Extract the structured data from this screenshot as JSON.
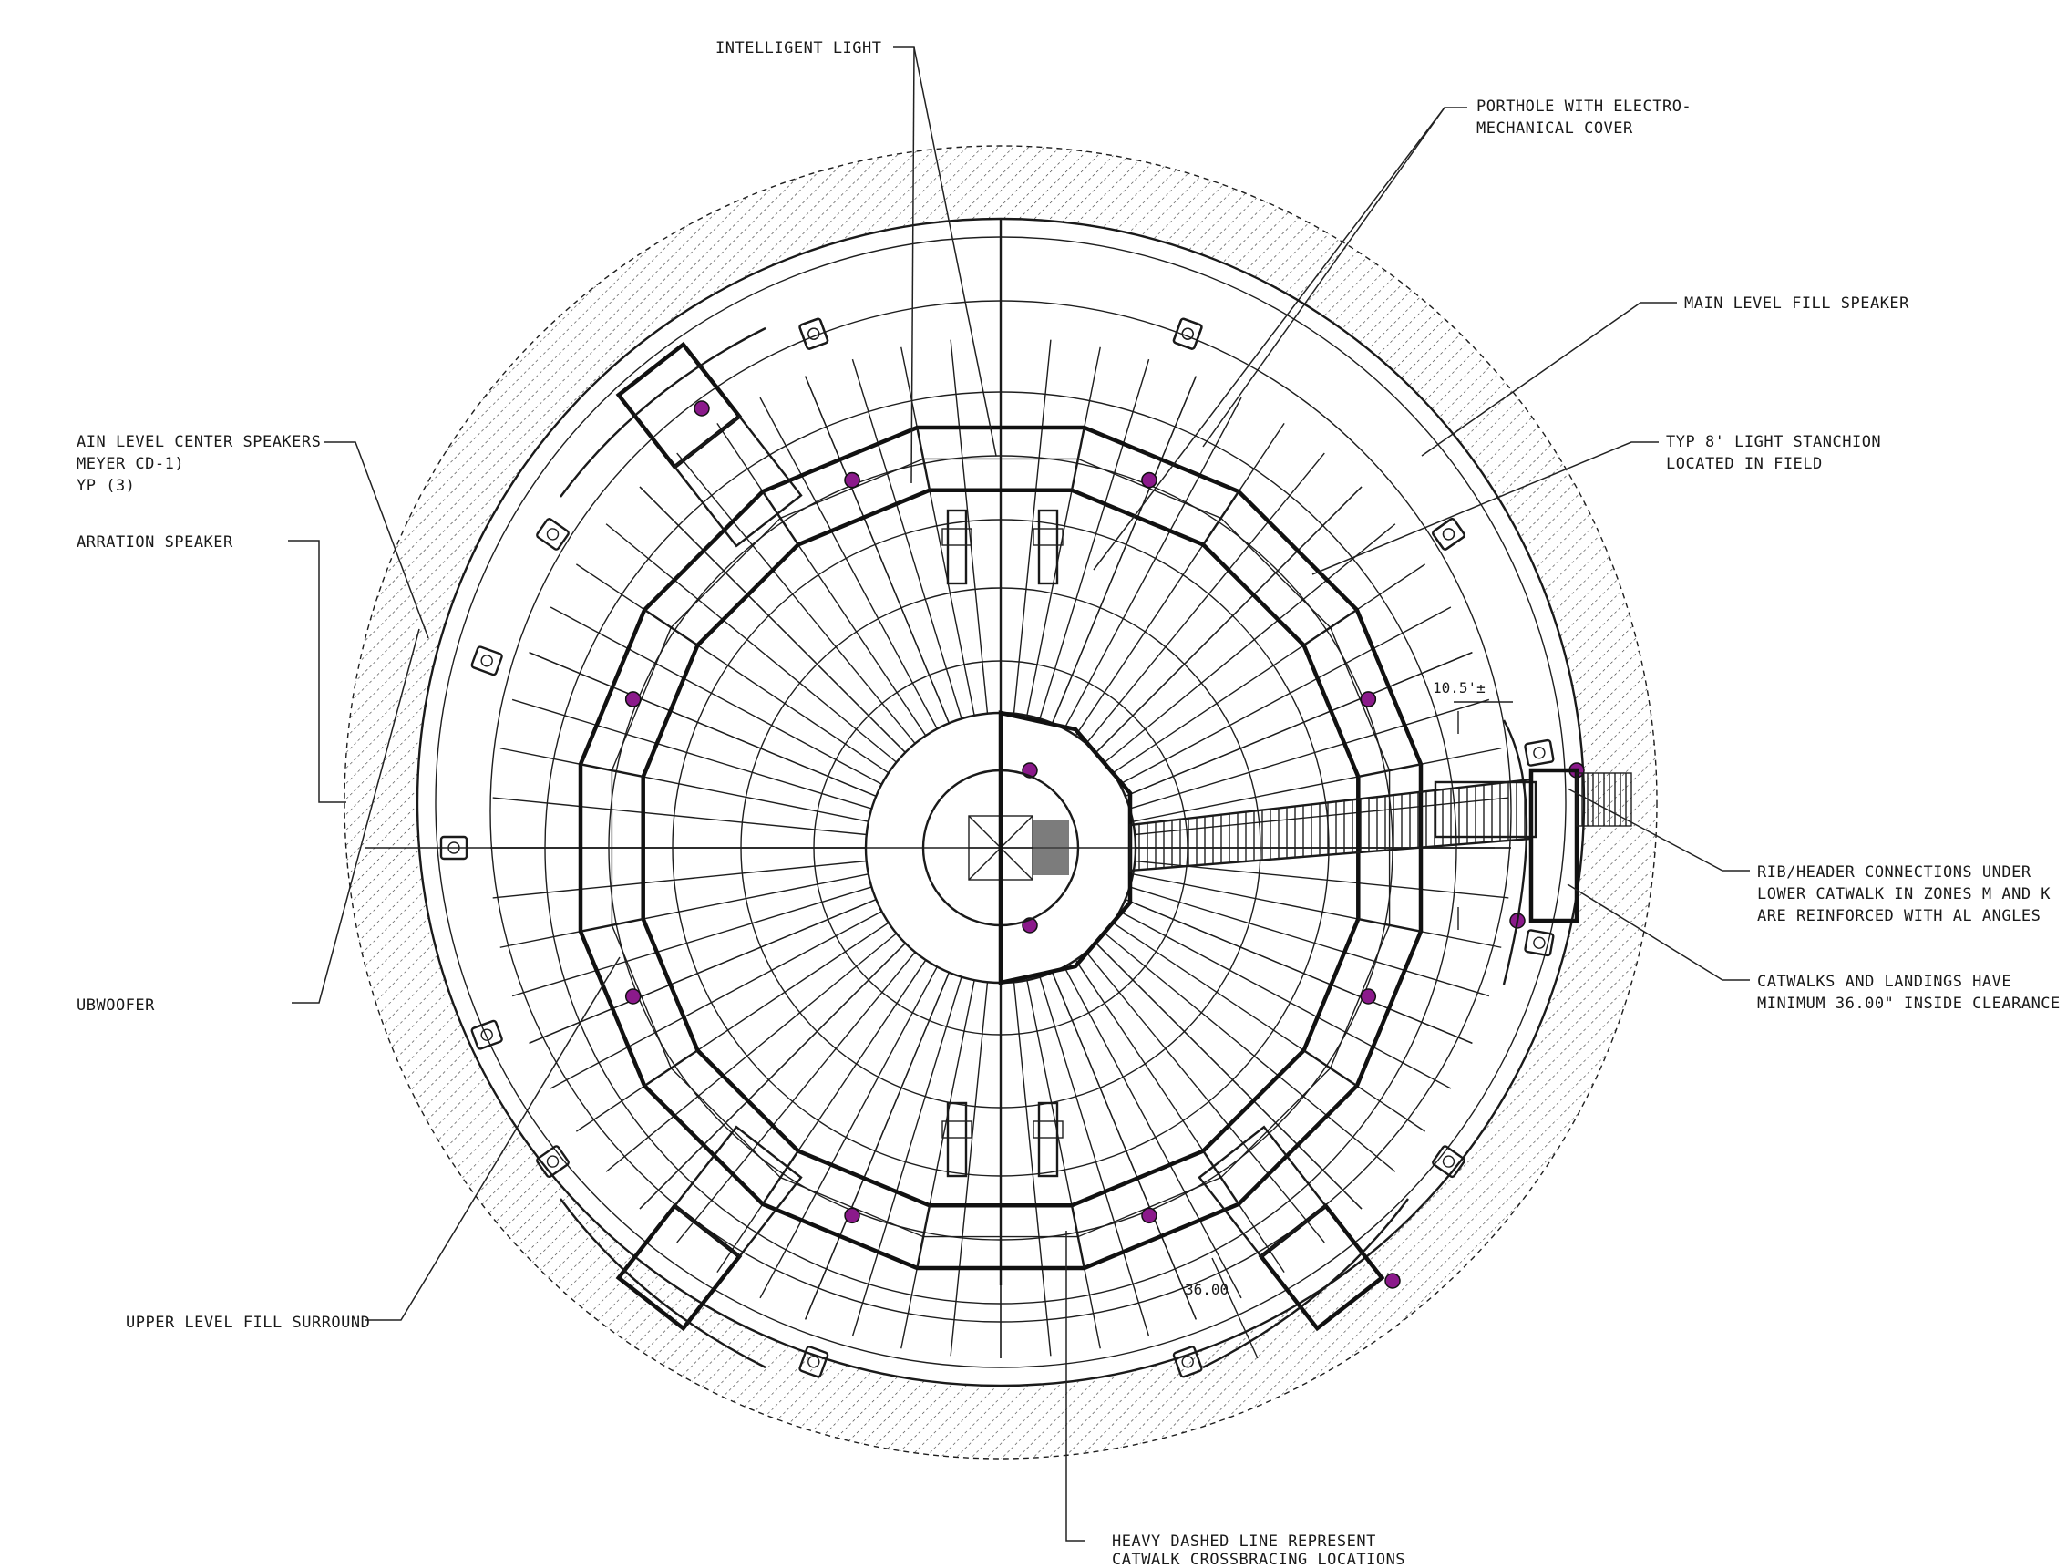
{
  "labels": {
    "intelligent_light": "INTELLIGENT LIGHT",
    "porthole_1": "PORTHOLE WITH ELECTRO-",
    "porthole_2": "MECHANICAL COVER",
    "main_fill_speaker": "MAIN LEVEL FILL SPEAKER",
    "stanchion_1": "TYP 8' LIGHT STANCHION",
    "stanchion_2": "LOCATED IN FIELD",
    "center_speakers_1": "AIN LEVEL CENTER SPEAKERS",
    "center_speakers_2": "MEYER CD-1)",
    "center_speakers_3": "YP (3)",
    "narration_speaker": "ARRATION SPEAKER",
    "subwoofer": "UBWOOFER",
    "upper_fill": "UPPER LEVEL FILL SURROUND",
    "rib_header_1": "RIB/HEADER CONNECTIONS UNDER",
    "rib_header_2": "LOWER CATWALK IN ZONES M AND K",
    "rib_header_3": "ARE REINFORCED WITH AL ANGLES",
    "catwalk_clear_1": "CATWALKS AND LANDINGS HAVE",
    "catwalk_clear_2": "MINIMUM 36.00\" INSIDE CLEARANCE",
    "dashed_line_1": "HEAVY DASHED LINE REPRESENT",
    "dashed_line_2": "CATWALK CROSSBRACING LOCATIONS"
  },
  "dimensions": {
    "dim_right": "10.5'±",
    "dim_bottom": "36.00"
  },
  "colors": {
    "line": "#1a1a1a",
    "marker": "#8b1a8b",
    "hatch": "#333333"
  }
}
